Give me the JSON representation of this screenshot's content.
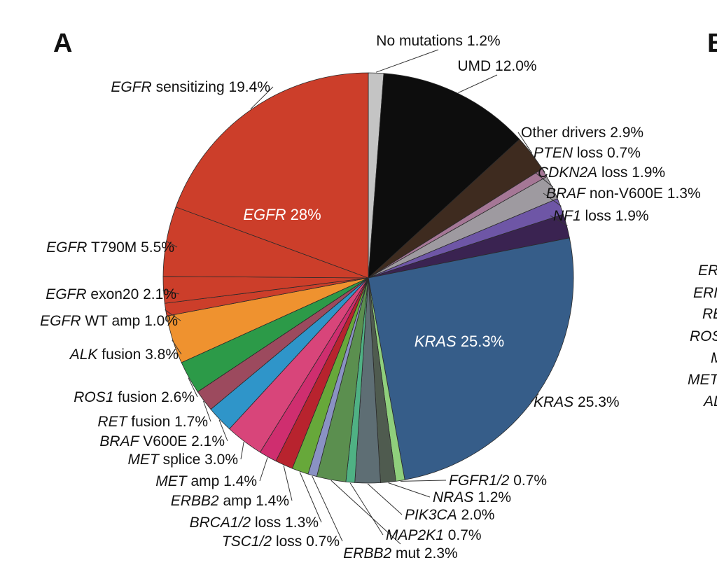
{
  "panel_labels": {
    "left": "A",
    "right": "B"
  },
  "right_panel_partial_labels": [
    "ER",
    "ERI",
    "RE",
    "ROS",
    "M",
    "MET",
    "AL"
  ],
  "chart_data": {
    "type": "pie",
    "start": "top, clockwise",
    "slices": [
      {
        "name": "No mutations",
        "value": 1.2,
        "label": "No mutations 1.2%",
        "color": "#c4c4c4"
      },
      {
        "name": "UMD",
        "value": 12.0,
        "label": "UMD 12.0%",
        "color": "#0d0d0d"
      },
      {
        "name": "Other drivers",
        "value": 2.9,
        "label": "Other drivers 2.9%",
        "color": "#3e2b1f"
      },
      {
        "name": "PTEN loss",
        "value": 0.7,
        "gene": "PTEN",
        "rest": " loss 0.7%",
        "color": "#a57796"
      },
      {
        "name": "CDKN2A loss",
        "value": 1.9,
        "gene": "CDKN2A",
        "rest": " loss 1.9%",
        "color": "#9e9aa0"
      },
      {
        "name": "BRAF non-V600E",
        "value": 1.3,
        "gene": "BRAF",
        "rest": " non-V600E 1.3%",
        "color": "#6e56a6"
      },
      {
        "name": "NF1 loss",
        "value": 1.9,
        "gene": "NF1",
        "rest": " loss 1.9%",
        "color": "#3a2351"
      },
      {
        "name": "KRAS",
        "value": 25.3,
        "gene": "KRAS",
        "rest": " 25.3%",
        "color": "#365d89"
      },
      {
        "name": "FGFR1/2",
        "value": 0.7,
        "gene": "FGFR1/2",
        "rest": " 0.7%",
        "color": "#8fcf7c"
      },
      {
        "name": "NRAS",
        "value": 1.2,
        "gene": "NRAS",
        "rest": " 1.2%",
        "color": "#4f5b4f"
      },
      {
        "name": "PIK3CA",
        "value": 2.0,
        "gene": "PIK3CA",
        "rest": " 2.0%",
        "color": "#5e6e74"
      },
      {
        "name": "MAP2K1",
        "value": 0.7,
        "gene": "MAP2K1",
        "rest": " 0.7%",
        "color": "#4fb184"
      },
      {
        "name": "ERBB2 mut",
        "value": 2.3,
        "gene": "ERBB2",
        "rest": " mut 2.3%",
        "color": "#5b8f4f"
      },
      {
        "name": "TSC1/2 loss",
        "value": 0.7,
        "gene": "TSC1/2",
        "rest": " loss 0.7%",
        "color": "#8a92c4"
      },
      {
        "name": "BRCA1/2 loss",
        "value": 1.3,
        "gene": "BRCA1/2",
        "rest": " loss 1.3%",
        "color": "#67a83a"
      },
      {
        "name": "ERBB2 amp",
        "value": 1.4,
        "gene": "ERBB2",
        "rest": " amp 1.4%",
        "color": "#b8232e"
      },
      {
        "name": "MET amp",
        "value": 1.4,
        "gene": "MET",
        "rest": " amp 1.4%",
        "color": "#cf2e6f"
      },
      {
        "name": "MET splice",
        "value": 3.0,
        "gene": "MET",
        "rest": " splice 3.0%",
        "color": "#d8457a"
      },
      {
        "name": "BRAF V600E",
        "value": 2.1,
        "gene": "BRAF",
        "rest": " V600E 2.1%",
        "color": "#2f95c9"
      },
      {
        "name": "RET fusion",
        "value": 1.7,
        "gene": "RET",
        "rest": " fusion 1.7%",
        "color": "#9c4a5e"
      },
      {
        "name": "ROS1 fusion",
        "value": 2.6,
        "gene": "ROS1",
        "rest": " fusion 2.6%",
        "color": "#2c9a48"
      },
      {
        "name": "ALK fusion",
        "value": 3.8,
        "gene": "ALK",
        "rest": " fusion 3.8%",
        "color": "#ef922f"
      },
      {
        "name": "EGFR WT amp",
        "value": 1.0,
        "gene": "EGFR",
        "rest": " WT amp 1.0%",
        "color": "#cc3e2a"
      },
      {
        "name": "EGFR exon20",
        "value": 2.1,
        "gene": "EGFR",
        "rest": " exon20 2.1%",
        "color": "#cc3e2a"
      },
      {
        "name": "EGFR T790M",
        "value": 5.5,
        "gene": "EGFR",
        "rest": " T790M 5.5%",
        "color": "#cc3e2a"
      },
      {
        "name": "EGFR sensitizing",
        "value": 19.4,
        "gene": "EGFR",
        "rest": " sensitizing 19.4%",
        "color": "#cc3e2a"
      }
    ],
    "inner_labels": [
      {
        "gene": "EGFR",
        "rest": " 28%"
      },
      {
        "gene": "KRAS",
        "rest": " 25.3%"
      }
    ]
  }
}
